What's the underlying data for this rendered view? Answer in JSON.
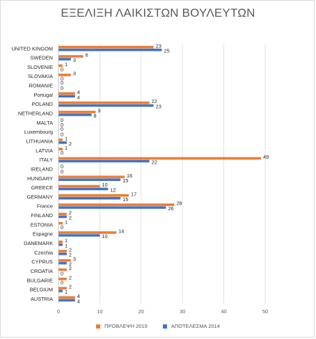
{
  "chart_data": {
    "type": "bar",
    "orientation": "horizontal",
    "title": "ΕΞΕΛΙΞΗ ΛΑΙΚΙΣΤΩΝ ΒΟΥΛΕΥΤΩΝ",
    "categories": [
      "UNITED KINGOM",
      "SWEDEN",
      "SLOVENIE",
      "SLOVAKIA",
      "ROMANIE",
      "Portugal",
      "POLAND",
      "NETHERLAND",
      "MALTA",
      "Luxembourg",
      "LITHUANIA",
      "LATVIA",
      "ITALY",
      "IRELAND",
      "HUNGARY",
      "GREECE",
      "GERMANY",
      "France",
      "FINLAND",
      "ESTONIA",
      "Espagne",
      "DANEMARK",
      "Czechia",
      "CYPRUS",
      "CROATIA",
      "BULGARIE",
      "BELGIUM",
      "AUSTRIA"
    ],
    "series": [
      {
        "name": "ΠΡΟΒΛΕΨΗ 2019",
        "color": "#ed7d31",
        "values": [
          23,
          6,
          1,
          3,
          0,
          4,
          22,
          9,
          0,
          0,
          1,
          1,
          49,
          0,
          16,
          10,
          17,
          28,
          2,
          1,
          14,
          1,
          2,
          3,
          2,
          2,
          2,
          4
        ]
      },
      {
        "name": "ΑΠΟΤΕΛΕΣΜΑ 2014",
        "color": "#4472c4",
        "values": [
          25,
          3,
          0,
          0,
          0,
          4,
          23,
          8,
          0,
          0,
          2,
          0,
          22,
          0,
          15,
          12,
          15,
          26,
          2,
          0,
          10,
          1,
          2,
          2,
          0,
          0,
          1,
          4
        ]
      }
    ],
    "xlim": [
      0,
      50
    ],
    "xticks": [
      "0",
      "10",
      "20",
      "30",
      "40",
      "50"
    ],
    "grid": true,
    "legend": "bottom"
  }
}
